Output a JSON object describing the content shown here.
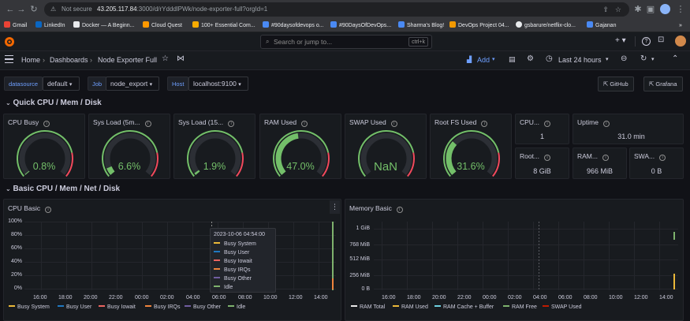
{
  "browser": {
    "not_secure": "Not secure",
    "url_host": "43.205.117.84",
    "url_path": ":3000/d/rYdddlPWk/node-exporter-full?orgId=1",
    "bookmarks": [
      "Gmail",
      "LinkedIn",
      "Docker — A Beginn...",
      "Cloud Quest",
      "100+ Essential Com...",
      "#90daysofdevops o...",
      "#90DaysOfDevOps...",
      "Sharma's Blog!",
      "DevOps Project 04...",
      "gsbarure/netflix-clo...",
      "Gajanan"
    ],
    "more": "»"
  },
  "topbar": {
    "search_placeholder": "Search or jump to...",
    "search_shortcut": "ctrl+k",
    "plus": "+ ▾"
  },
  "nav": {
    "breadcrumb_home": "Home",
    "breadcrumb_dashboards": "Dashboards",
    "breadcrumb_current": "Node Exporter Full",
    "add_label": "Add",
    "time_range": "Last 24 hours"
  },
  "variables": {
    "datasource_label": "datasource",
    "datasource_value": "default",
    "job_label": "Job",
    "job_value": "node_export",
    "host_label": "Host",
    "host_value": "localhost:9100",
    "github": "GitHub",
    "grafana": "Grafana"
  },
  "rows": {
    "quick": "Quick CPU / Mem / Disk",
    "basic": "Basic CPU / Mem / Net / Disk"
  },
  "gauges": [
    {
      "title": "CPU Busy",
      "value": "0.8%",
      "fraction": 0.008,
      "color": "#73bf69"
    },
    {
      "title": "Sys Load (5m...",
      "value": "6.6%",
      "fraction": 0.066,
      "color": "#73bf69"
    },
    {
      "title": "Sys Load (15...",
      "value": "1.9%",
      "fraction": 0.019,
      "color": "#73bf69"
    },
    {
      "title": "RAM Used",
      "value": "47.0%",
      "fraction": 0.47,
      "color": "#73bf69"
    },
    {
      "title": "SWAP Used",
      "value": "NaN",
      "fraction": 0,
      "color": "#73bf69"
    },
    {
      "title": "Root FS Used",
      "value": "31.6%",
      "fraction": 0.316,
      "color": "#73bf69"
    }
  ],
  "stats": [
    {
      "title": "CPU...",
      "value": "1"
    },
    {
      "title": "Uptime",
      "value": "31.0 min"
    },
    {
      "title": "Root...",
      "value": "8 GiB"
    },
    {
      "title": "RAM...",
      "value": "966 MiB"
    },
    {
      "title": "SWA...",
      "value": "0 B"
    }
  ],
  "cpu_basic": {
    "title": "CPU Basic",
    "y_ticks": [
      "100%",
      "80%",
      "60%",
      "40%",
      "20%",
      "0%"
    ],
    "x_ticks": [
      "16:00",
      "18:00",
      "20:00",
      "22:00",
      "00:00",
      "02:00",
      "04:00",
      "06:00",
      "08:00",
      "10:00",
      "12:00",
      "14:00"
    ],
    "legend": [
      {
        "name": "Busy System",
        "color": "#eab839"
      },
      {
        "name": "Busy User",
        "color": "#1f78c1"
      },
      {
        "name": "Busy Iowait",
        "color": "#ea6460"
      },
      {
        "name": "Busy IRQs",
        "color": "#ef843c"
      },
      {
        "name": "Busy Other",
        "color": "#705da0"
      },
      {
        "name": "Idle",
        "color": "#7eb26d"
      }
    ],
    "tooltip": {
      "time": "2023-10-06 04:54:00",
      "items": [
        "Busy System",
        "Busy User",
        "Busy Iowait",
        "Busy IRQs",
        "Busy Other",
        "Idle"
      ]
    }
  },
  "memory_basic": {
    "title": "Memory Basic",
    "y_ticks": [
      "1 GiB",
      "768 MiB",
      "512 MiB",
      "256 MiB",
      "0 B"
    ],
    "x_ticks": [
      "16:00",
      "18:00",
      "20:00",
      "22:00",
      "00:00",
      "02:00",
      "04:00",
      "06:00",
      "08:00",
      "10:00",
      "12:00",
      "14:00"
    ],
    "legend": [
      {
        "name": "RAM Total",
        "color": "#e8e8e8"
      },
      {
        "name": "RAM Used",
        "color": "#eab839"
      },
      {
        "name": "RAM Cache + Buffer",
        "color": "#6ed0e0"
      },
      {
        "name": "RAM Free",
        "color": "#7eb26d"
      },
      {
        "name": "SWAP Used",
        "color": "#bf1b00"
      }
    ]
  }
}
